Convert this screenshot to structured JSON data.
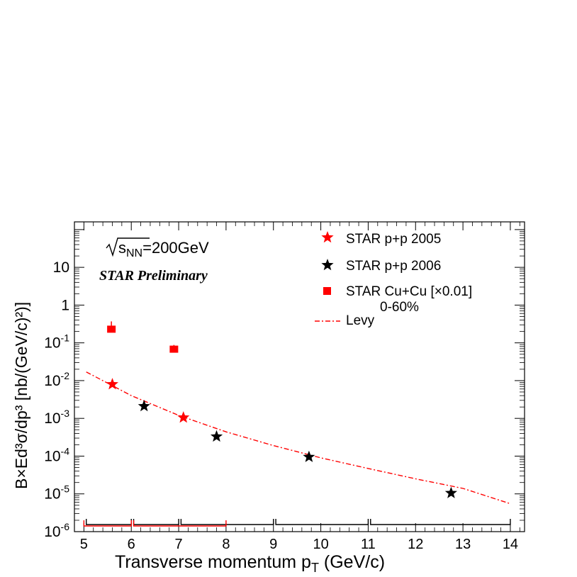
{
  "chart_data": {
    "type": "scatter",
    "annotations": {
      "energy": "=200GeV",
      "energy_symbol": "s",
      "energy_subscript": "NN",
      "preliminary": "STAR Preliminary"
    },
    "xlabel": "Transverse momentum p",
    "xlabel_subscript": "T",
    "xlabel_units": " (GeV/c)",
    "ylabel": "B×Ed³σ/dp³  [nb/(GeV/c)²)]",
    "xlim": [
      5,
      14
    ],
    "ylim": [
      1e-06,
      200
    ],
    "y_log": true,
    "x_ticks": [
      5,
      6,
      7,
      8,
      9,
      10,
      11,
      12,
      13,
      14
    ],
    "y_ticks": [
      {
        "v": 1e-06,
        "base": "10",
        "exp": "-6"
      },
      {
        "v": 1e-05,
        "base": "10",
        "exp": "-5"
      },
      {
        "v": 0.0001,
        "base": "10",
        "exp": "-4"
      },
      {
        "v": 0.001,
        "base": "10",
        "exp": "-3"
      },
      {
        "v": 0.01,
        "base": "10",
        "exp": "-2"
      },
      {
        "v": 0.1,
        "base": "10",
        "exp": "-1"
      },
      {
        "v": 1,
        "base": "1",
        "exp": ""
      },
      {
        "v": 10,
        "base": "10",
        "exp": ""
      }
    ],
    "legend_position": "top-right",
    "series": [
      {
        "name": "STAR p+p 2005",
        "marker": "star",
        "color": "#ff0000",
        "points": [
          {
            "x": 5.6,
            "y": 0.008
          },
          {
            "x": 7.1,
            "y": 0.00105
          }
        ]
      },
      {
        "name": "STAR p+p 2006",
        "marker": "star",
        "color": "#000000",
        "points": [
          {
            "x": 6.27,
            "y": 0.0021
          },
          {
            "x": 7.8,
            "y": 0.00033
          },
          {
            "x": 9.75,
            "y": 9.5e-05
          },
          {
            "x": 12.75,
            "y": 1.05e-05
          }
        ]
      },
      {
        "name": "STAR Cu+Cu [×0.01]",
        "name_line2": "0-60%",
        "marker": "square",
        "color": "#ff0000",
        "points": [
          {
            "x": 5.58,
            "y": 0.23,
            "err_up": 0.37
          },
          {
            "x": 6.9,
            "y": 0.068,
            "err_up": 0.088
          }
        ]
      },
      {
        "name": "Levy",
        "marker": "dashdot-line",
        "color": "#ff0000",
        "curve": [
          {
            "x": 5.05,
            "y": 0.017
          },
          {
            "x": 6,
            "y": 0.004
          },
          {
            "x": 7,
            "y": 0.0012
          },
          {
            "x": 8,
            "y": 0.00044
          },
          {
            "x": 9,
            "y": 0.00019
          },
          {
            "x": 10,
            "y": 9e-05
          },
          {
            "x": 11,
            "y": 4.7e-05
          },
          {
            "x": 12,
            "y": 2.5e-05
          },
          {
            "x": 13,
            "y": 1.4e-05
          },
          {
            "x": 14,
            "y": 5.5e-06
          }
        ]
      }
    ],
    "bins": [
      {
        "x1": 5.05,
        "x2": 6.0,
        "color": "#000000"
      },
      {
        "x1": 6.05,
        "x2": 7.0,
        "color": "#000000"
      },
      {
        "x1": 7.05,
        "x2": 9.0,
        "color": "#000000"
      },
      {
        "x1": 9.05,
        "x2": 11.0,
        "color": "#000000"
      },
      {
        "x1": 11.05,
        "x2": 14.0,
        "color": "#000000"
      },
      {
        "x1": 5.0,
        "x2": 6.0,
        "color": "#ff0000"
      },
      {
        "x1": 6.05,
        "x2": 8.0,
        "color": "#ff0000"
      }
    ]
  }
}
